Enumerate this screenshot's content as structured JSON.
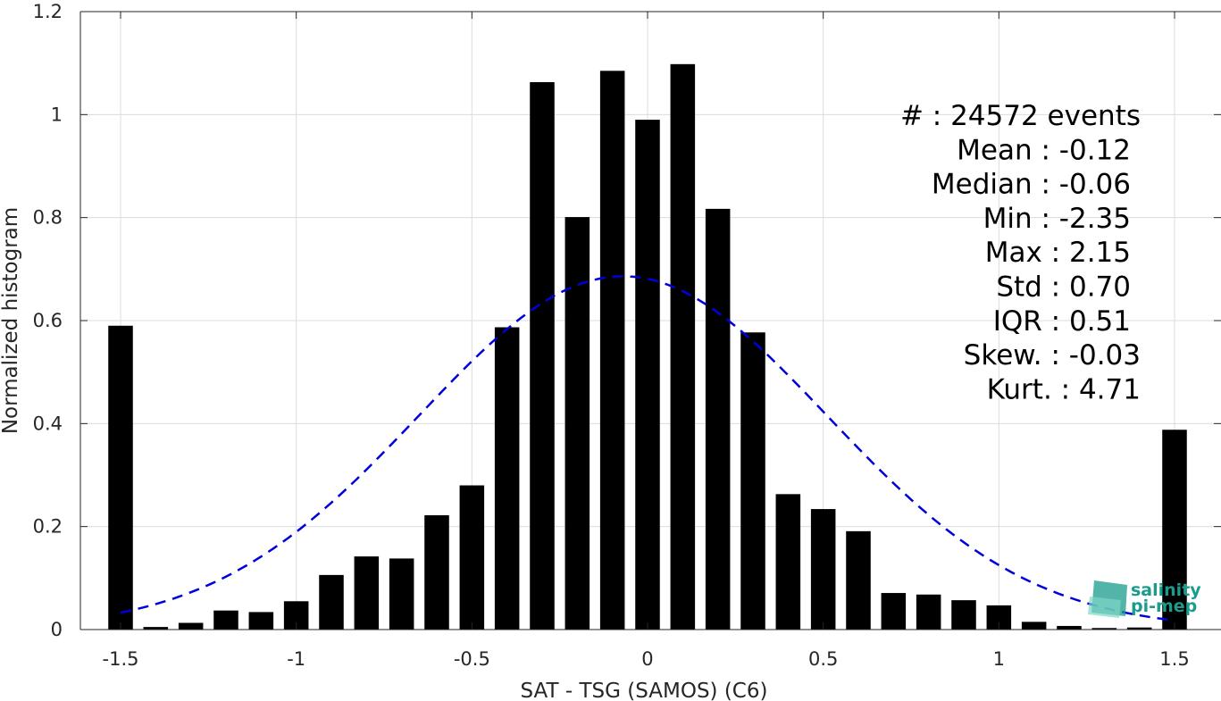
{
  "chart_data": {
    "type": "bar",
    "title": "",
    "xlabel": "SAT - TSG (SAMOS) (C6)",
    "ylabel": "Normalized histogram",
    "xlim": [
      -1.6,
      1.6
    ],
    "ylim": [
      0,
      1.2
    ],
    "grid": true,
    "x_ticks": [
      -1.5,
      -1,
      -0.5,
      0,
      0.5,
      1,
      1.5
    ],
    "x_tick_labels": [
      "-1.5",
      "-1",
      "-0.5",
      "0",
      "0.5",
      "1",
      "1.5"
    ],
    "y_ticks": [
      0,
      0.2,
      0.4,
      0.6,
      0.8,
      1,
      1.2
    ],
    "y_tick_labels": [
      "0",
      "0.2",
      "0.4",
      "0.6",
      "0.8",
      "1",
      "1.2"
    ],
    "bar_width": 0.07,
    "x": [
      -1.5,
      -1.4,
      -1.3,
      -1.2,
      -1.1,
      -1.0,
      -0.9,
      -0.8,
      -0.7,
      -0.6,
      -0.5,
      -0.4,
      -0.3,
      -0.2,
      -0.1,
      0.0,
      0.1,
      0.2,
      0.3,
      0.4,
      0.5,
      0.6,
      0.7,
      0.8,
      0.9,
      1.0,
      1.1,
      1.2,
      1.3,
      1.4,
      1.5
    ],
    "values": [
      0.59,
      0.005,
      0.013,
      0.037,
      0.034,
      0.055,
      0.106,
      0.142,
      0.138,
      0.222,
      0.28,
      0.587,
      1.063,
      0.801,
      1.085,
      0.99,
      1.098,
      0.817,
      0.577,
      0.263,
      0.234,
      0.191,
      0.071,
      0.068,
      0.057,
      0.047,
      0.015,
      0.007,
      0.003,
      0.004,
      0.388
    ],
    "bar_color": "#000000",
    "fit_curve": {
      "style": "dashed",
      "color": "#0000dd",
      "description": "Gaussian fit",
      "x_range": [
        -1.5,
        1.5
      ],
      "peak": 0.686,
      "center": -0.07,
      "sigma": 0.58
    }
  },
  "stats_box": {
    "lines": [
      "#  : 24572 events",
      "Mean : -0.12",
      "Median : -0.06",
      "Min : -2.35",
      "Max : 2.15",
      "Std : 0.70",
      "IQR : 0.51",
      "Skew. : -0.03",
      "Kurt. : 4.71"
    ],
    "position": "top-right"
  },
  "logo": {
    "line1": "salinity",
    "line2": "pi-mep",
    "color": "#1a9c8c"
  }
}
